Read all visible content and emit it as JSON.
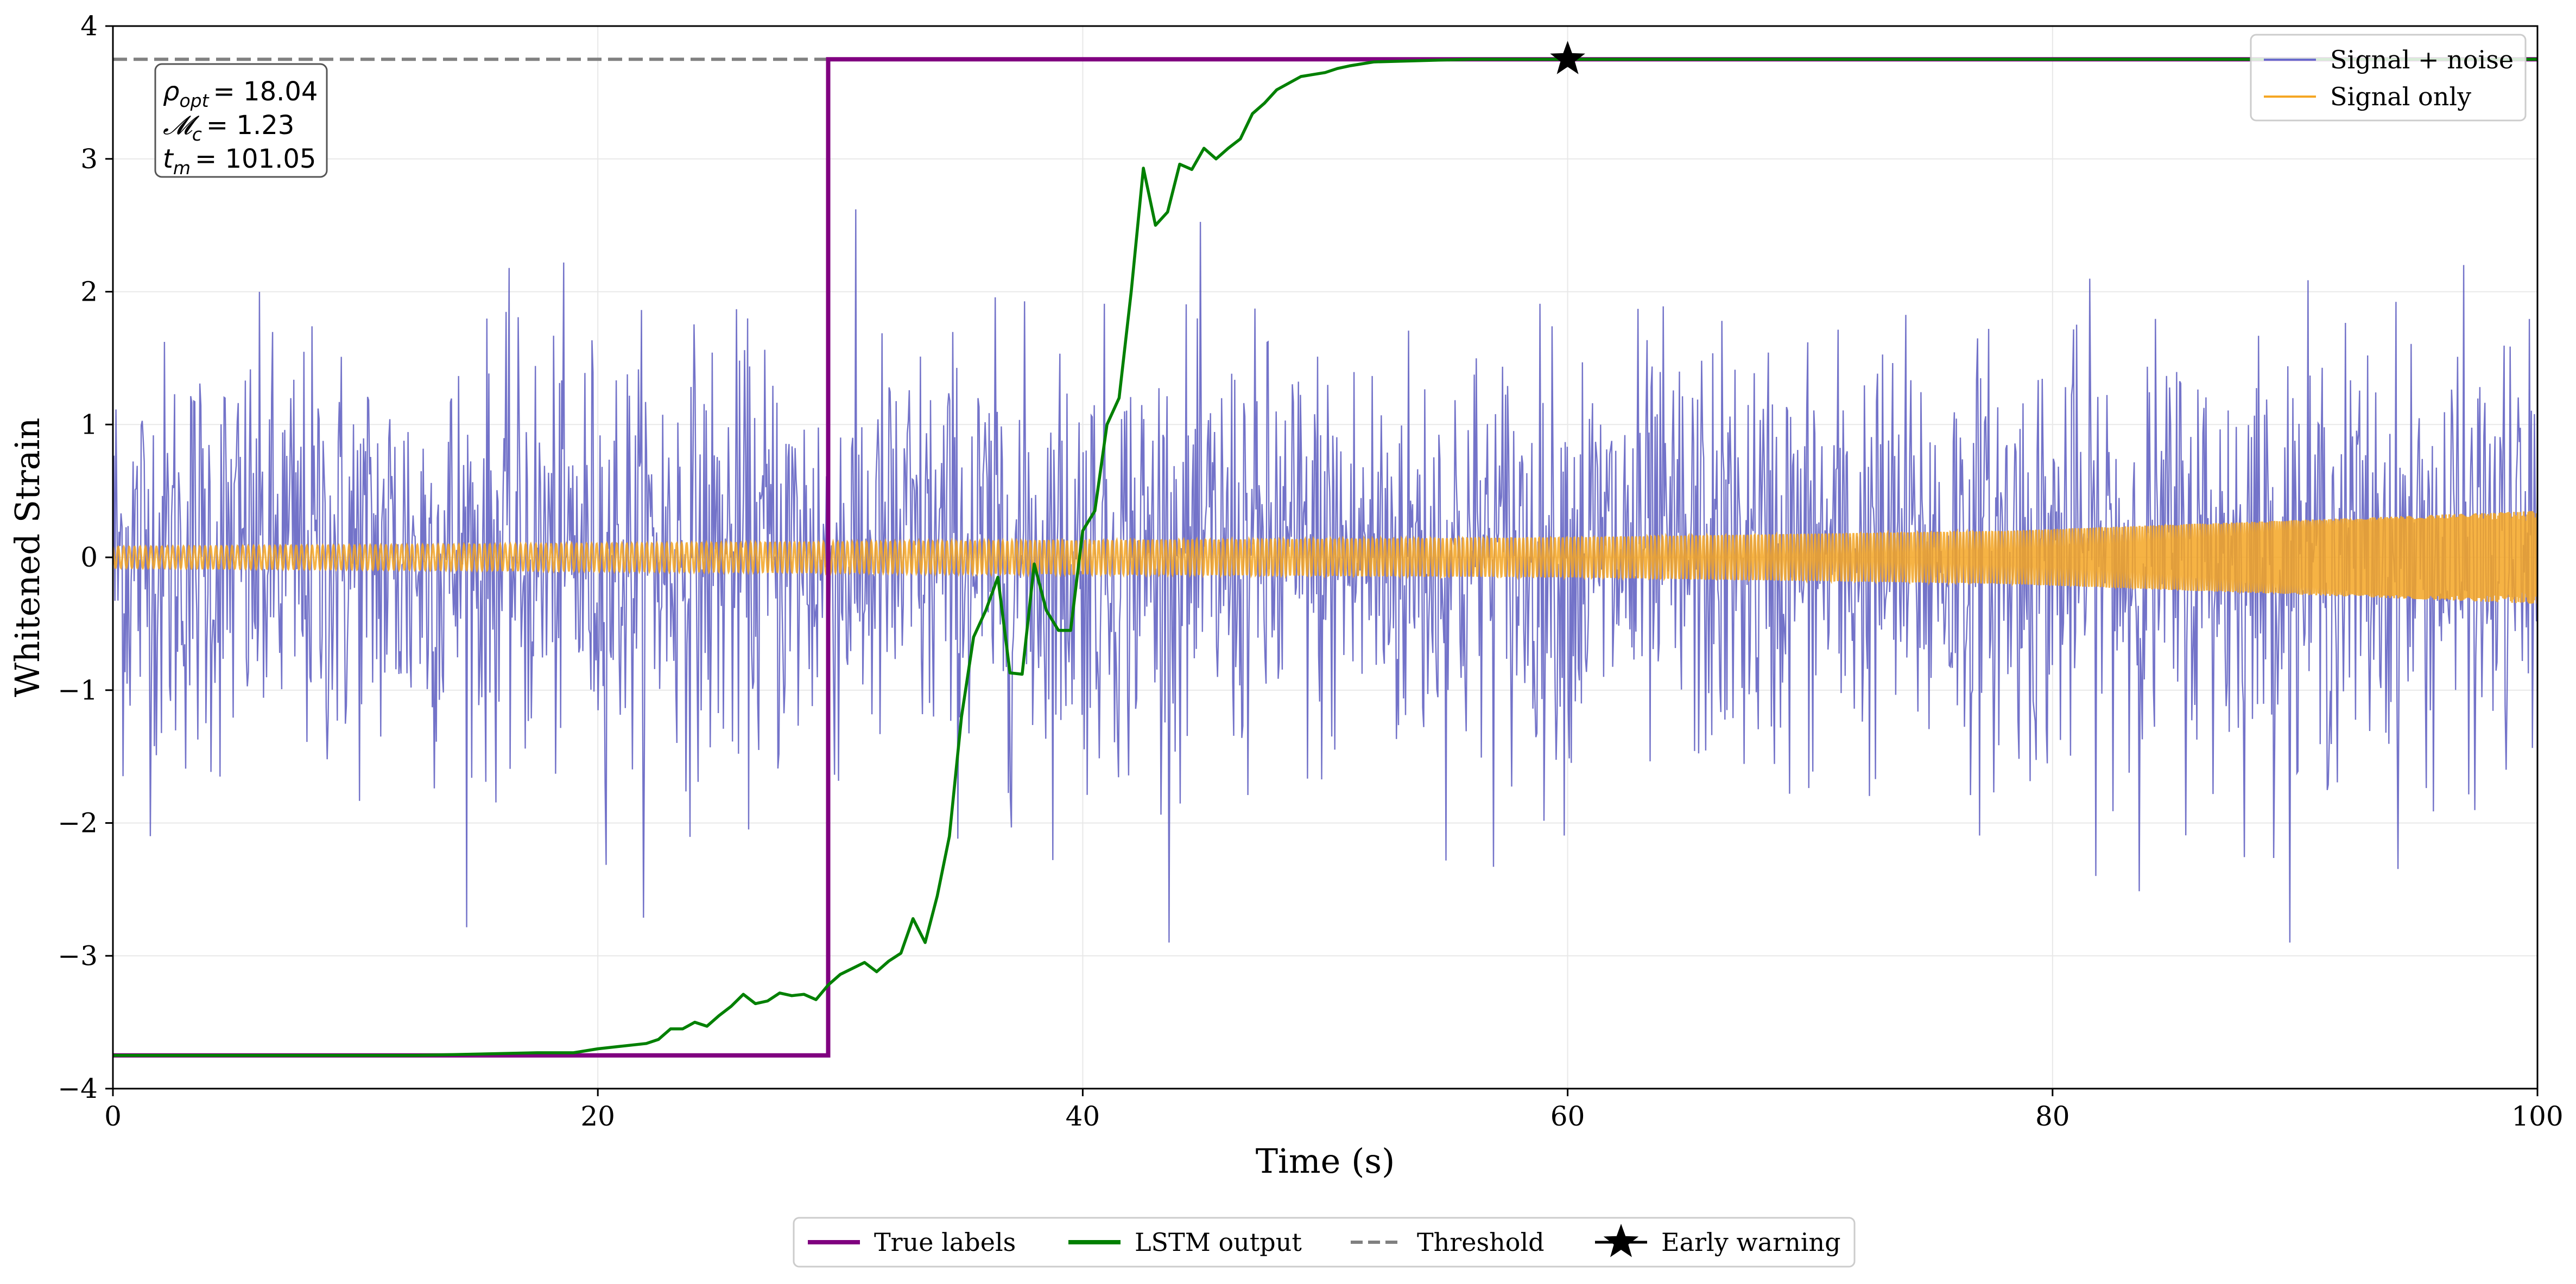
{
  "chart_data": {
    "type": "line",
    "xlabel": "Time (s)",
    "ylabel": "Whitened Strain",
    "xlim": [
      0,
      100
    ],
    "ylim": [
      -4,
      4
    ],
    "xticks": [
      0,
      20,
      40,
      60,
      80,
      100
    ],
    "yticks": [
      -4,
      -3,
      -2,
      -1,
      0,
      1,
      2,
      3,
      4
    ],
    "xtick_labels": [
      "0",
      "20",
      "40",
      "60",
      "80",
      "100"
    ],
    "ytick_labels": [
      "−4",
      "−3",
      "−2",
      "−1",
      "0",
      "1",
      "2",
      "3",
      "4"
    ],
    "grid": true,
    "annotation": {
      "lines": [
        {
          "symbol": "ρ",
          "sub": "opt",
          "value": "= 18.04"
        },
        {
          "symbol": "𝓜",
          "sub": "c",
          "value": "= 1.23"
        },
        {
          "symbol": "t",
          "sub": "m",
          "value": "= 101.05"
        }
      ]
    },
    "legend_inside": {
      "position": "top-right",
      "entries": [
        {
          "label": "Signal + noise",
          "color": "#6a6acd"
        },
        {
          "label": "Signal only",
          "color": "#f5a623"
        }
      ]
    },
    "legend_bottom": {
      "position": "bottom-center",
      "entries": [
        {
          "label": "True labels",
          "color": "#800080",
          "style": "solid"
        },
        {
          "label": "LSTM output",
          "color": "#008000",
          "style": "solid"
        },
        {
          "label": "Threshold",
          "color": "#808080",
          "style": "dashed"
        },
        {
          "label": "Early warning",
          "color": "#000000",
          "style": "star"
        }
      ]
    },
    "series": [
      {
        "name": "Signal + noise",
        "color": "#5b5bc0",
        "kind": "noise",
        "approx_std": 0.8,
        "x_range": [
          0,
          100
        ],
        "samples": 2400
      },
      {
        "name": "Signal only",
        "color": "#f5a623",
        "kind": "chirp",
        "x_range": [
          0,
          100
        ],
        "envelope": [
          [
            0,
            0.08
          ],
          [
            60,
            0.15
          ],
          [
            78,
            0.2
          ],
          [
            90,
            0.28
          ],
          [
            100,
            0.35
          ]
        ]
      },
      {
        "name": "True labels",
        "color": "#800080",
        "points": [
          [
            0,
            -3.75
          ],
          [
            29.5,
            -3.75
          ],
          [
            29.5,
            3.75
          ],
          [
            100,
            3.75
          ]
        ]
      },
      {
        "name": "LSTM output",
        "color": "#008000",
        "points": [
          [
            0,
            -3.75
          ],
          [
            5,
            -3.75
          ],
          [
            10,
            -3.75
          ],
          [
            12.5,
            -3.75
          ],
          [
            15,
            -3.74
          ],
          [
            17.5,
            -3.73
          ],
          [
            19,
            -3.73
          ],
          [
            20,
            -3.7
          ],
          [
            21,
            -3.68
          ],
          [
            22,
            -3.66
          ],
          [
            22.5,
            -3.63
          ],
          [
            23,
            -3.55
          ],
          [
            23.5,
            -3.55
          ],
          [
            24,
            -3.5
          ],
          [
            24.5,
            -3.53
          ],
          [
            25,
            -3.45
          ],
          [
            25.5,
            -3.38
          ],
          [
            26,
            -3.29
          ],
          [
            26.5,
            -3.36
          ],
          [
            27,
            -3.34
          ],
          [
            27.5,
            -3.28
          ],
          [
            28,
            -3.3
          ],
          [
            28.5,
            -3.29
          ],
          [
            29,
            -3.33
          ],
          [
            29.5,
            -3.22
          ],
          [
            30,
            -3.14
          ],
          [
            31,
            -3.05
          ],
          [
            31.5,
            -3.12
          ],
          [
            32,
            -3.04
          ],
          [
            32.5,
            -2.98
          ],
          [
            33,
            -2.72
          ],
          [
            33.5,
            -2.9
          ],
          [
            34,
            -2.55
          ],
          [
            34.5,
            -2.1
          ],
          [
            35,
            -1.2
          ],
          [
            35.5,
            -0.6
          ],
          [
            36,
            -0.4
          ],
          [
            36.5,
            -0.15
          ],
          [
            37,
            -0.87
          ],
          [
            37.5,
            -0.88
          ],
          [
            38,
            -0.05
          ],
          [
            38.5,
            -0.4
          ],
          [
            39,
            -0.55
          ],
          [
            39.5,
            -0.55
          ],
          [
            40,
            0.2
          ],
          [
            40.5,
            0.35
          ],
          [
            41,
            1.0
          ],
          [
            41.5,
            1.2
          ],
          [
            42,
            2.0
          ],
          [
            42.5,
            2.93
          ],
          [
            43,
            2.5
          ],
          [
            43.5,
            2.6
          ],
          [
            44,
            2.96
          ],
          [
            44.5,
            2.92
          ],
          [
            45,
            3.08
          ],
          [
            45.5,
            3.0
          ],
          [
            46,
            3.08
          ],
          [
            46.5,
            3.15
          ],
          [
            47,
            3.34
          ],
          [
            47.5,
            3.42
          ],
          [
            48,
            3.52
          ],
          [
            49,
            3.62
          ],
          [
            50,
            3.65
          ],
          [
            50.5,
            3.68
          ],
          [
            51,
            3.7
          ],
          [
            52,
            3.73
          ],
          [
            54,
            3.74
          ],
          [
            56,
            3.75
          ],
          [
            60,
            3.75
          ],
          [
            70,
            3.75
          ],
          [
            80,
            3.75
          ],
          [
            90,
            3.75
          ],
          [
            100,
            3.75
          ]
        ]
      },
      {
        "name": "Threshold",
        "color": "#808080",
        "y": 3.75
      },
      {
        "name": "Early warning",
        "color": "#000000",
        "points": [
          [
            60,
            3.75
          ]
        ]
      }
    ]
  }
}
